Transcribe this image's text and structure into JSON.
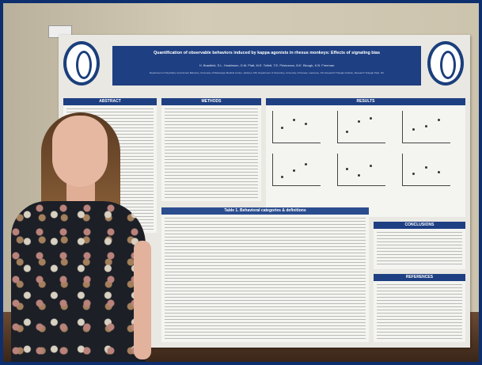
{
  "poster": {
    "title": "Quantification of observable behaviors induced by kappa agonists in rhesus monkeys: Effects of signaling bias",
    "authors": "H. Brasfield, S.L. Huskinson, D.M. Platt, M.E. Tollett, T.E. Prisinzano, B.E. Blough, K.B. Freeman",
    "affiliations": "Department of Psychiatry and Human Behavior, University of Mississippi Medical Center, Jackson, MS; Department of Chemistry, University of Kansas, Lawrence, KS; Research Triangle Institute, Research Triangle Park, NC",
    "sections": {
      "abstract": "ABSTRACT",
      "methods": "METHODS",
      "results": "RESULTS",
      "table1": "Table 1. Behavioral categories & definitions",
      "conclusions": "CONCLUSIONS",
      "references": "REFERENCES"
    }
  },
  "colors": {
    "accent": "#1e3f82",
    "frame": "#0d2f6e"
  }
}
